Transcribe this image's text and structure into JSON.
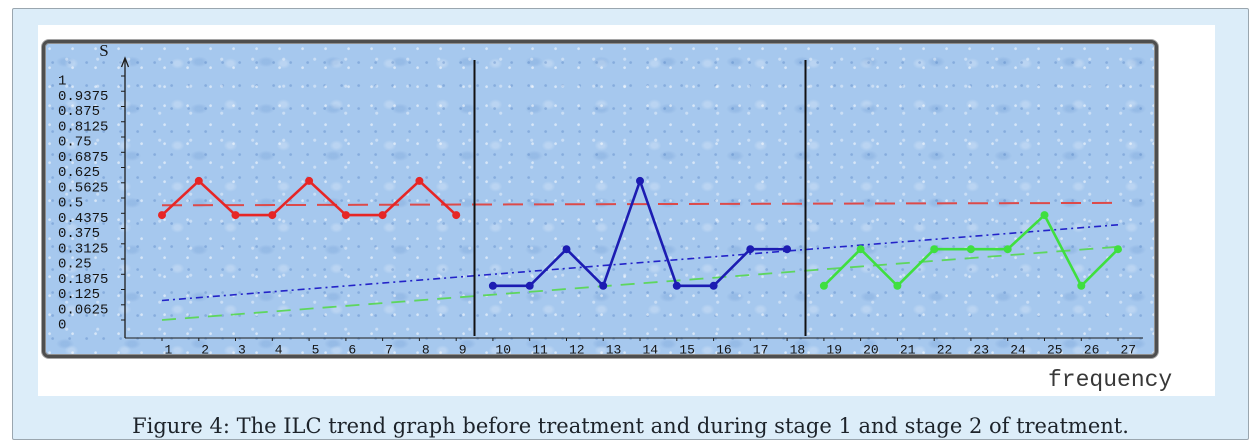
{
  "figure": {
    "caption": "Figure 4: The ILC trend graph before treatment and during stage 1 and stage 2 of treatment."
  },
  "colors": {
    "panel_background": "#dcedf9",
    "plot_background": "#a6c8ee",
    "divider": "#111111",
    "axis": "#1c1c1c"
  },
  "chart_data": {
    "type": "line",
    "xlabel": "frequency",
    "ylabel": "S",
    "xlim": [
      1,
      27
    ],
    "ylim": [
      0,
      1
    ],
    "grid": false,
    "x_ticks": [
      "1",
      "2",
      "3",
      "4",
      "5",
      "6",
      "7",
      "8",
      "9",
      "10",
      "11",
      "12",
      "13",
      "14",
      "15",
      "16",
      "17",
      "18",
      "19",
      "20",
      "21",
      "22",
      "23",
      "24",
      "25",
      "26",
      "27"
    ],
    "y_ticks": [
      "1",
      "0.9375",
      "0.875",
      "0.8125",
      "0.75",
      "0.6875",
      "0.625",
      "0.5625",
      "0.5",
      "0.4375",
      "0.375",
      "0.3125",
      "0.25",
      "0.1875",
      "0.125",
      "0.0625",
      "0"
    ],
    "phase_dividers": [
      9.5,
      18.5
    ],
    "series": [
      {
        "color": "#e62626",
        "x": [
          1,
          2,
          3,
          4,
          5,
          6,
          7,
          8,
          9
        ],
        "values": [
          0.43,
          0.57,
          0.43,
          0.43,
          0.57,
          0.43,
          0.43,
          0.57,
          0.43
        ]
      },
      {
        "color": "#1c1cb2",
        "x": [
          10,
          11,
          12,
          13,
          14,
          15,
          16,
          17,
          18
        ],
        "values": [
          0.14,
          0.14,
          0.29,
          0.14,
          0.57,
          0.14,
          0.14,
          0.29,
          0.29
        ]
      },
      {
        "color": "#3fdf3f",
        "x": [
          19,
          20,
          21,
          22,
          23,
          24,
          25,
          26,
          27
        ],
        "values": [
          0.14,
          0.29,
          0.14,
          0.29,
          0.29,
          0.29,
          0.43,
          0.14,
          0.29
        ]
      }
    ],
    "trend_lines": [
      {
        "color": "#dc4a4a",
        "x": [
          1,
          27
        ],
        "values": [
          0.47,
          0.48
        ]
      },
      {
        "color": "#2323c8",
        "x": [
          1,
          27
        ],
        "values": [
          0.08,
          0.39
        ]
      },
      {
        "color": "#5ed65e",
        "x": [
          1,
          27
        ],
        "values": [
          0.0,
          0.3
        ]
      }
    ]
  }
}
